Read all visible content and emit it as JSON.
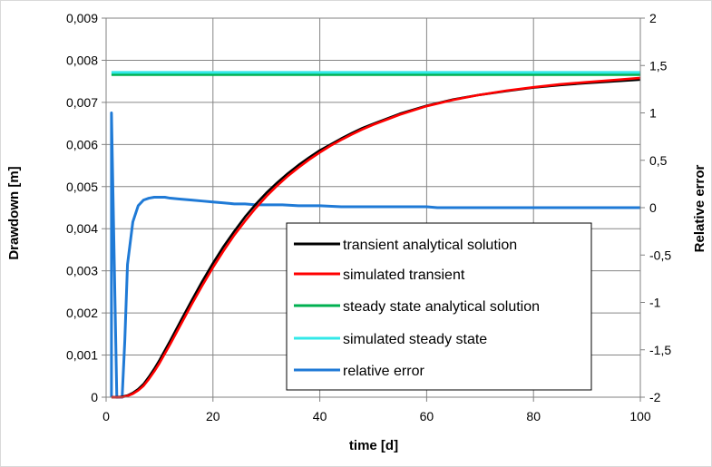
{
  "chart_data": {
    "type": "line",
    "title": "",
    "xlabel": "time [d]",
    "ylabel": "Drawdown [m]",
    "y2label": "Relative error",
    "xlim": [
      0,
      100
    ],
    "ylim": [
      0,
      0.009
    ],
    "y2lim": [
      -2,
      2
    ],
    "grid": true,
    "legend_position": "lower-right",
    "x_ticks": [
      "0",
      "20",
      "40",
      "60",
      "80",
      "100"
    ],
    "y_ticks": [
      "0",
      "0,001",
      "0,002",
      "0,003",
      "0,004",
      "0,005",
      "0,006",
      "0,007",
      "0,008",
      "0,009"
    ],
    "y2_ticks": [
      "-2",
      "-1,5",
      "-1",
      "-0,5",
      "0",
      "0,5",
      "1",
      "1,5",
      "2"
    ],
    "series": [
      {
        "name": "transient analytical solution",
        "color": "#000000",
        "axis": "left",
        "x": [
          1,
          2,
          3,
          4,
          5,
          6,
          7,
          8,
          9,
          10,
          12,
          14,
          16,
          18,
          20,
          22,
          24,
          26,
          28,
          30,
          32,
          34,
          36,
          38,
          40,
          42,
          44,
          46,
          48,
          50,
          55,
          60,
          65,
          70,
          75,
          80,
          85,
          90,
          95,
          100
        ],
        "y": [
          0,
          0,
          1e-05,
          4e-05,
          0.0001,
          0.00019,
          0.00031,
          0.00048,
          0.00067,
          0.00088,
          0.00134,
          0.00182,
          0.00229,
          0.00275,
          0.00318,
          0.00358,
          0.00394,
          0.00428,
          0.00458,
          0.00485,
          0.00509,
          0.00531,
          0.00551,
          0.00569,
          0.00586,
          0.006,
          0.00614,
          0.00627,
          0.00639,
          0.00649,
          0.00673,
          0.00692,
          0.00707,
          0.00718,
          0.00727,
          0.00735,
          0.00741,
          0.00746,
          0.0075,
          0.00754
        ]
      },
      {
        "name": "simulated transient",
        "color": "#ff0000",
        "axis": "left",
        "x": [
          1,
          2,
          3,
          4,
          5,
          6,
          7,
          8,
          9,
          10,
          12,
          14,
          16,
          18,
          20,
          22,
          24,
          26,
          28,
          30,
          32,
          34,
          36,
          38,
          40,
          42,
          44,
          46,
          48,
          50,
          55,
          60,
          65,
          70,
          75,
          80,
          85,
          90,
          95,
          100
        ],
        "y": [
          0,
          0,
          0,
          3e-05,
          8e-05,
          0.00016,
          0.00027,
          0.00043,
          0.00061,
          0.00081,
          0.00126,
          0.00173,
          0.0022,
          0.00265,
          0.00308,
          0.00348,
          0.00385,
          0.00418,
          0.00449,
          0.00477,
          0.00502,
          0.00525,
          0.00545,
          0.00564,
          0.00581,
          0.00597,
          0.00611,
          0.00624,
          0.00636,
          0.00647,
          0.00671,
          0.00691,
          0.00706,
          0.00718,
          0.00728,
          0.00736,
          0.00743,
          0.00748,
          0.00753,
          0.00758
        ]
      },
      {
        "name": "steady state analytical solution",
        "color": "#00b050",
        "axis": "left",
        "x": [
          1,
          100
        ],
        "y": [
          0.00766,
          0.00766
        ]
      },
      {
        "name": "simulated steady state",
        "color": "#33e8e8",
        "axis": "left",
        "x": [
          1,
          100
        ],
        "y": [
          0.00771,
          0.00771
        ]
      },
      {
        "name": "relative error",
        "color": "#1f7ad6",
        "axis": "right",
        "x": [
          1,
          1,
          2,
          3,
          3.5,
          4,
          5,
          6,
          7,
          8,
          9,
          10,
          11,
          12,
          14,
          16,
          18,
          20,
          22,
          24,
          26,
          28,
          30,
          33,
          36,
          40,
          44,
          50,
          55,
          60,
          62,
          65,
          70,
          80,
          90,
          100
        ],
        "y": [
          -2,
          1.0,
          -2,
          -2,
          -1.4,
          -0.6,
          -0.15,
          0.02,
          0.08,
          0.1,
          0.11,
          0.11,
          0.11,
          0.1,
          0.09,
          0.08,
          0.07,
          0.06,
          0.05,
          0.04,
          0.04,
          0.03,
          0.03,
          0.03,
          0.02,
          0.02,
          0.01,
          0.01,
          0.01,
          0.01,
          0.0,
          0.0,
          0.0,
          0.0,
          0.0,
          0.0
        ]
      }
    ]
  }
}
